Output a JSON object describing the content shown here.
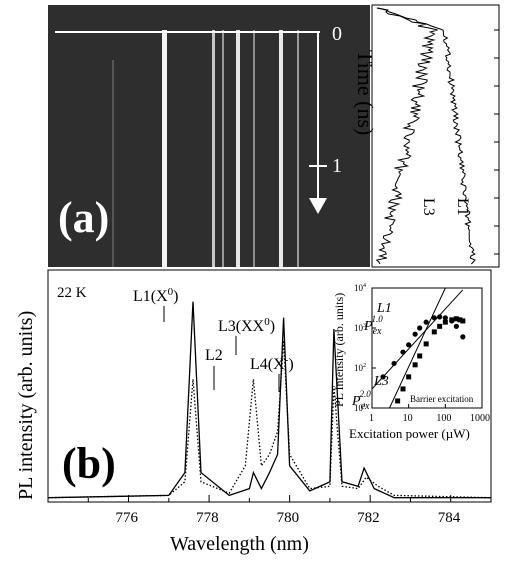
{
  "figure": {
    "panel_a": {
      "label": "(a)",
      "time_zero_label": "0",
      "time_one_label": "1",
      "time_axis_title": "Time (ns)",
      "trace_labels": [
        "L1",
        "L3"
      ],
      "streak_lines_count_note": "bright vertical emission streaks",
      "colors": {
        "background": "#2e2e2e",
        "streak": "#ffffff",
        "arrow": "#ffffff"
      }
    },
    "panel_b": {
      "label": "(b)",
      "temperature": "22 K",
      "peaks": [
        {
          "label": "L1(X",
          "sup": "0",
          "close": ")"
        },
        {
          "label": "L2",
          "sup": "",
          "close": ""
        },
        {
          "label": "L3(XX",
          "sup": "0",
          "close": ")"
        },
        {
          "label": "L4(X",
          "sup": "-",
          "close": ")"
        }
      ],
      "xlabel": "Wavelength (nm)",
      "ylabel": "PL intensity (arb. units)",
      "xticks": [
        "776",
        "778",
        "780",
        "782",
        "784"
      ]
    },
    "inset": {
      "ylabel": "PL Intensity (arb. units)",
      "xlabel": "Excitation power (µW)",
      "note": "Barrier excitation",
      "xticks": [
        "1",
        "10",
        "100",
        "1000"
      ],
      "series_labels": [
        "L1",
        "L3"
      ],
      "slope_labels": [
        {
          "base": "P",
          "sub": "ex",
          "sup": "1.0"
        },
        {
          "base": "P",
          "sub": "ex",
          "sup": "2.0"
        }
      ]
    }
  },
  "chart_data": [
    {
      "type": "line",
      "title": "",
      "xlabel": "Wavelength (nm)",
      "ylabel": "PL intensity (arb. units)",
      "xlim": [
        774,
        785
      ],
      "ylim": [
        0,
        1
      ],
      "grid": false,
      "series": [
        {
          "style": "solid",
          "x": [
            774,
            777.0,
            777.4,
            777.6,
            777.8,
            778.5,
            779.0,
            779.1,
            779.3,
            779.5,
            779.7,
            779.85,
            780.0,
            780.5,
            781.0,
            781.1,
            781.3,
            781.7,
            781.85,
            782.1,
            782.6,
            785
          ],
          "y": [
            0.01,
            0.02,
            0.12,
            0.87,
            0.12,
            0.02,
            0.05,
            0.12,
            0.05,
            0.12,
            0.2,
            0.8,
            0.15,
            0.04,
            0.08,
            0.75,
            0.08,
            0.06,
            0.14,
            0.05,
            0.01,
            0.01
          ]
        },
        {
          "style": "dotted",
          "x": [
            774,
            777.0,
            777.4,
            777.6,
            777.8,
            778.5,
            778.9,
            779.1,
            779.3,
            779.5,
            779.7,
            779.85,
            780.0,
            780.5,
            781.0,
            781.1,
            781.3,
            781.7,
            781.9,
            782.2,
            782.6,
            785
          ],
          "y": [
            0.01,
            0.02,
            0.08,
            0.53,
            0.08,
            0.03,
            0.15,
            0.53,
            0.15,
            0.2,
            0.3,
            0.7,
            0.2,
            0.05,
            0.06,
            0.5,
            0.06,
            0.05,
            0.1,
            0.06,
            0.02,
            0.01
          ]
        }
      ]
    },
    {
      "type": "scatter",
      "xlabel": "Excitation power (µW)",
      "ylabel": "PL Intensity (arb. units)",
      "xscale": "log",
      "yscale": "log",
      "xlim": [
        1,
        1000
      ],
      "ylim": [
        10,
        10000
      ],
      "series": [
        {
          "name": "L1",
          "marker": "circle",
          "x": [
            2,
            4,
            7,
            10,
            15,
            20,
            30,
            50,
            70,
            100,
            150,
            200,
            300
          ],
          "y": [
            60,
            130,
            250,
            380,
            700,
            1000,
            1400,
            1800,
            1900,
            1800,
            1500,
            1100,
            600
          ]
        },
        {
          "name": "L3",
          "marker": "square",
          "x": [
            5,
            7,
            10,
            15,
            20,
            30,
            50,
            70,
            100,
            150,
            200,
            250,
            300
          ],
          "y": [
            15,
            30,
            60,
            120,
            200,
            400,
            800,
            1100,
            1400,
            1600,
            1700,
            1600,
            1500
          ]
        }
      ],
      "fit_lines": [
        {
          "label": "P_ex^1.0",
          "x": [
            1,
            300
          ],
          "y": [
            30,
            9000
          ]
        },
        {
          "label": "P_ex^2.0",
          "x": [
            3,
            100
          ],
          "y": [
            10,
            10000
          ]
        }
      ]
    }
  ]
}
